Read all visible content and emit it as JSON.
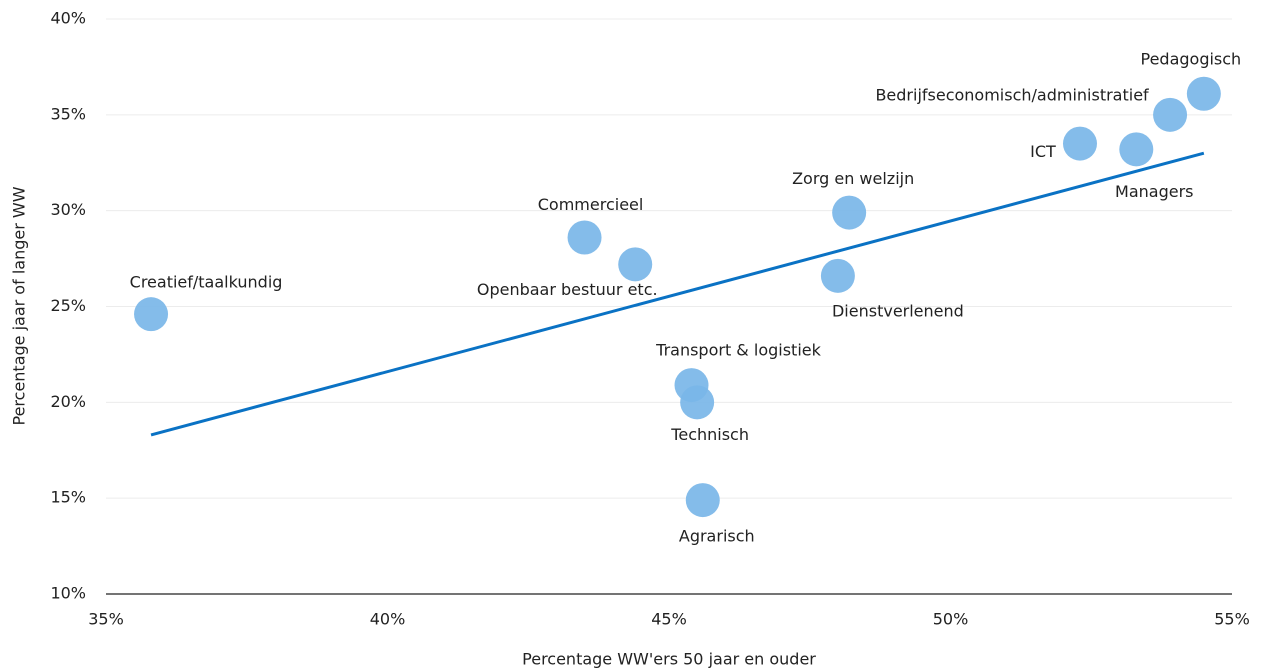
{
  "chart_data": {
    "type": "scatter",
    "xlabel": "Percentage WW'ers 50 jaar en ouder",
    "ylabel": "Percentage jaar of langer WW",
    "color": "#7ab6e8",
    "trend_color": "#0a72c4",
    "grid": true,
    "xlim": [
      35,
      55
    ],
    "ylim": [
      10,
      40
    ],
    "xticks": [
      {
        "value": 35,
        "label": "35%"
      },
      {
        "value": 40,
        "label": "40%"
      },
      {
        "value": 45,
        "label": "45%"
      },
      {
        "value": 50,
        "label": "50%"
      },
      {
        "value": 55,
        "label": "55%"
      }
    ],
    "yticks": [
      {
        "value": 10,
        "label": "10%"
      },
      {
        "value": 15,
        "label": "15%"
      },
      {
        "value": 20,
        "label": "20%"
      },
      {
        "value": 25,
        "label": "25%"
      },
      {
        "value": 30,
        "label": "30%"
      },
      {
        "value": 35,
        "label": "35%"
      },
      {
        "value": 40,
        "label": "40%"
      }
    ],
    "labels": [
      "Creatief/taalkundig",
      "Commercieel",
      "Openbaar bestuur etc.",
      "Zorg en welzijn",
      "Dienstverlenend",
      "Transport & logistiek",
      "Technisch",
      "Agrarisch",
      "ICT",
      "Managers",
      "Bedrijfseconomisch/administratief",
      "Pedagogisch"
    ],
    "x": [
      35.8,
      43.5,
      44.4,
      48.2,
      48.0,
      45.4,
      45.5,
      45.6,
      52.3,
      53.3,
      53.9,
      54.5
    ],
    "y": [
      24.6,
      28.6,
      27.2,
      29.9,
      26.6,
      20.9,
      20.0,
      14.9,
      33.5,
      33.2,
      35.0,
      36.1
    ],
    "trendline": {
      "x": [
        35.8,
        54.5
      ],
      "y": [
        18.3,
        33.0
      ]
    }
  }
}
